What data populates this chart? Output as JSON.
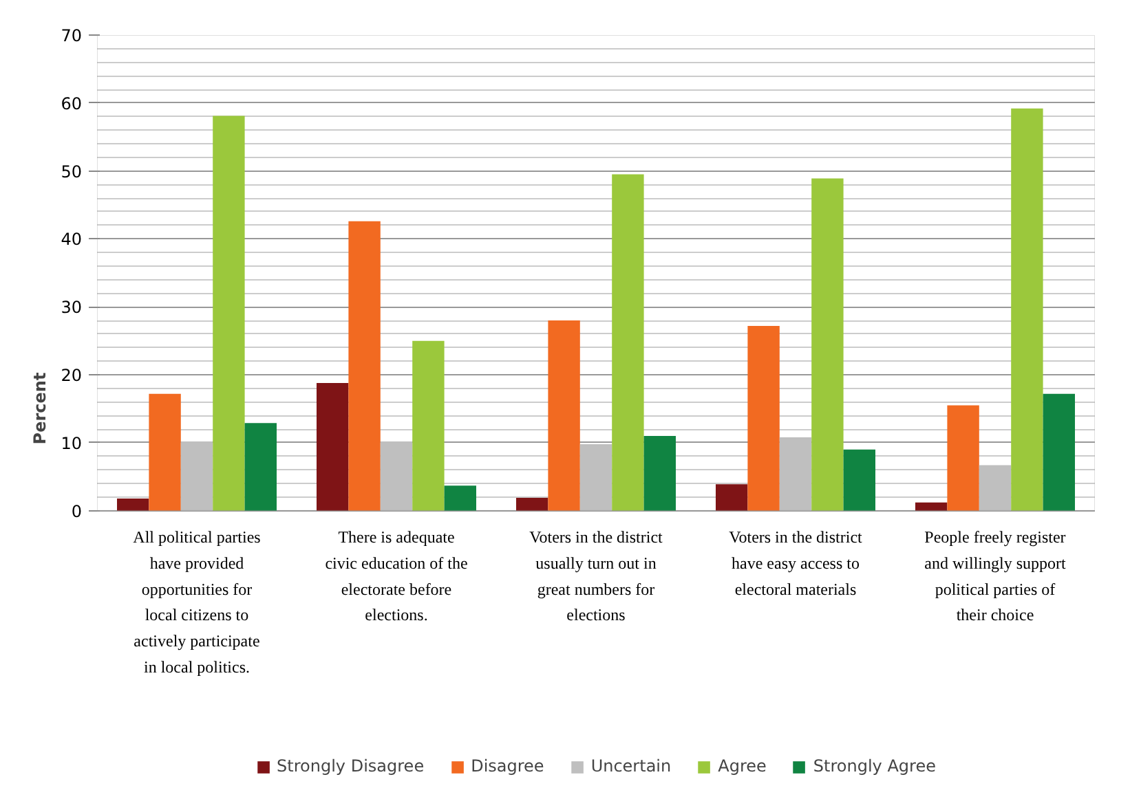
{
  "chart_data": {
    "type": "bar",
    "ylabel": "Percent",
    "categories": [
      "All political parties have provided opportunities for local citizens to actively participate in local politics.",
      "There is adequate civic education of the electorate before elections.",
      "Voters in the district usually turn out in great numbers for elections",
      "Voters in the district have easy access to electoral materials",
      "People freely register and willingly support political parties of their choice"
    ],
    "series": [
      {
        "name": "Strongly Disagree",
        "color": "#7f1416",
        "values": [
          1.8,
          18.8,
          1.9,
          3.9,
          1.2
        ]
      },
      {
        "name": "Disagree",
        "color": "#f26a21",
        "values": [
          17.2,
          42.6,
          28,
          27.2,
          15.5
        ]
      },
      {
        "name": "Uncertain",
        "color": "#bfbfbf",
        "values": [
          10.2,
          10.2,
          9.8,
          10.8,
          6.7
        ]
      },
      {
        "name": "Agree",
        "color": "#9bc83c",
        "values": [
          58.1,
          25,
          49.5,
          48.9,
          59.2
        ]
      },
      {
        "name": "Strongly Agree",
        "color": "#108442",
        "values": [
          12.9,
          3.7,
          11,
          9,
          17.2
        ]
      }
    ],
    "ylim": [
      0,
      70
    ],
    "yticks": [
      0,
      10,
      20,
      30,
      40,
      50,
      60,
      70
    ],
    "grid": "y",
    "legend": "bottom"
  }
}
